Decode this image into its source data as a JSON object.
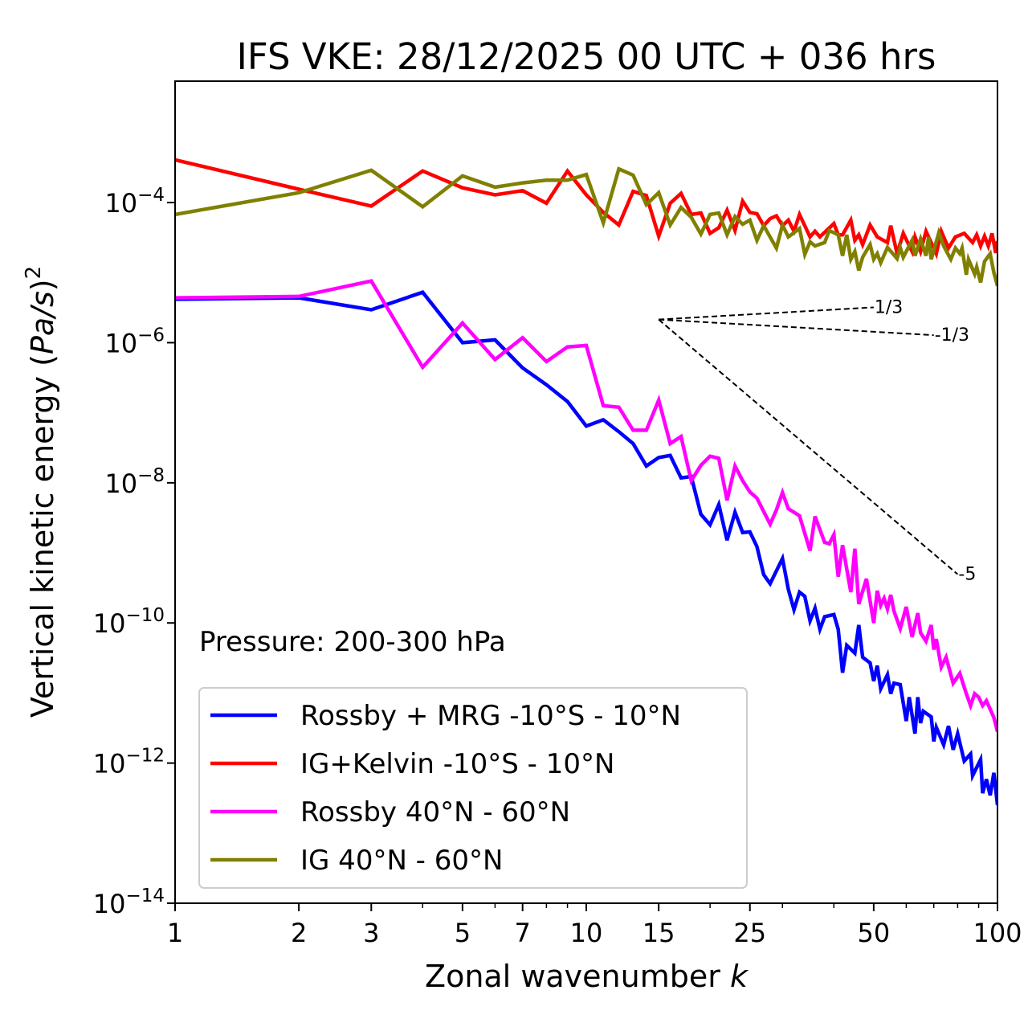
{
  "chart_data": {
    "type": "line",
    "title": "IFS VKE: 28/12/2025 00 UTC + 036 hrs",
    "xlabel_text": "Zonal wavenumber ",
    "xlabel_var": "k",
    "ylabel_text": "Vertical kinetic energy (",
    "ylabel_var": "Pa/s",
    "ylabel_close": ")",
    "ylabel_exp": "2",
    "x_scale": "log",
    "y_scale": "log",
    "xlim": [
      1,
      100
    ],
    "ylim": [
      1e-14,
      0.0054
    ],
    "x_ticks": [
      1,
      2,
      3,
      5,
      7,
      10,
      15,
      25,
      50,
      100
    ],
    "x_tick_labels": [
      "1",
      "2",
      "3",
      "5",
      "7",
      "10",
      "15",
      "25",
      "50",
      "100"
    ],
    "x_minor_ticks": [
      4,
      6,
      8,
      9,
      20,
      30,
      40,
      60,
      70,
      80,
      90
    ],
    "y_ticks_log10": [
      -4,
      -6,
      -8,
      -10,
      -12,
      -14
    ],
    "y_tick_base": "10",
    "y_tick_exponents": [
      "−4",
      "−6",
      "−8",
      "−10",
      "−12",
      "−14"
    ],
    "grid": false,
    "legend_position": "lower-left",
    "annotation": "Pressure: 200-300 hPa",
    "value_encoding": "points are [k, log10(VKE)]",
    "series": [
      {
        "name": "Rossby + MRG -10°S - 10°N",
        "color": "#0000ff",
        "points": [
          [
            1,
            -5.38
          ],
          [
            2,
            -5.36
          ],
          [
            3,
            -5.53
          ],
          [
            4,
            -5.28
          ],
          [
            5,
            -6.0
          ],
          [
            6,
            -5.96
          ],
          [
            7,
            -6.36
          ],
          [
            8,
            -6.6
          ],
          [
            9,
            -6.84
          ],
          [
            10,
            -7.19
          ],
          [
            11,
            -7.1
          ],
          [
            12,
            -7.27
          ],
          [
            13,
            -7.44
          ],
          [
            14,
            -7.76
          ],
          [
            15,
            -7.64
          ],
          [
            16,
            -7.61
          ],
          [
            17,
            -7.93
          ],
          [
            18,
            -7.91
          ],
          [
            19,
            -8.45
          ],
          [
            20,
            -8.6
          ],
          [
            21,
            -8.31
          ],
          [
            22,
            -8.82
          ],
          [
            23,
            -8.42
          ],
          [
            24,
            -8.71
          ],
          [
            25,
            -8.7
          ],
          [
            26,
            -8.91
          ],
          [
            27,
            -9.31
          ],
          [
            28,
            -9.44
          ],
          [
            30,
            -9.08
          ],
          [
            31,
            -9.52
          ],
          [
            32,
            -9.81
          ],
          [
            33,
            -9.56
          ],
          [
            34,
            -9.62
          ],
          [
            35,
            -9.97
          ],
          [
            36,
            -9.79
          ],
          [
            37,
            -10.09
          ],
          [
            38,
            -9.91
          ],
          [
            40,
            -9.88
          ],
          [
            41,
            -10.09
          ],
          [
            42,
            -10.71
          ],
          [
            43,
            -10.32
          ],
          [
            45,
            -10.43
          ],
          [
            46,
            -10.03
          ],
          [
            47,
            -10.49
          ],
          [
            49,
            -10.57
          ],
          [
            50,
            -10.83
          ],
          [
            51,
            -10.61
          ],
          [
            52,
            -10.94
          ],
          [
            54,
            -10.74
          ],
          [
            55,
            -11.01
          ],
          [
            56,
            -10.86
          ],
          [
            58,
            -10.88
          ],
          [
            60,
            -11.4
          ],
          [
            61,
            -11.06
          ],
          [
            63,
            -11.58
          ],
          [
            64,
            -11.06
          ],
          [
            65,
            -11.43
          ],
          [
            66,
            -11.26
          ],
          [
            69,
            -11.34
          ],
          [
            70,
            -11.69
          ],
          [
            71,
            -11.49
          ],
          [
            74,
            -11.74
          ],
          [
            76,
            -11.47
          ],
          [
            78,
            -11.81
          ],
          [
            80,
            -11.58
          ],
          [
            83,
            -11.97
          ],
          [
            86,
            -11.87
          ],
          [
            87,
            -12.18
          ],
          [
            91,
            -11.95
          ],
          [
            92,
            -12.43
          ],
          [
            94,
            -12.23
          ],
          [
            96,
            -12.46
          ],
          [
            98,
            -12.14
          ],
          [
            100,
            -12.6
          ]
        ]
      },
      {
        "name": "IG+Kelvin -10°S - 10°N",
        "color": "#ff0000",
        "points": [
          [
            1,
            -3.39
          ],
          [
            2,
            -3.81
          ],
          [
            3,
            -4.05
          ],
          [
            4,
            -3.55
          ],
          [
            5,
            -3.79
          ],
          [
            6,
            -3.89
          ],
          [
            7,
            -3.83
          ],
          [
            8,
            -4.01
          ],
          [
            9,
            -3.55
          ],
          [
            10,
            -3.89
          ],
          [
            11,
            -4.14
          ],
          [
            12,
            -4.32
          ],
          [
            13,
            -3.84
          ],
          [
            14,
            -3.9
          ],
          [
            15,
            -4.48
          ],
          [
            16,
            -4.01
          ],
          [
            17,
            -3.87
          ],
          [
            18,
            -4.17
          ],
          [
            19,
            -4.15
          ],
          [
            20,
            -4.44
          ],
          [
            21,
            -4.36
          ],
          [
            22,
            -4.11
          ],
          [
            23,
            -4.4
          ],
          [
            24,
            -3.98
          ],
          [
            25,
            -4.14
          ],
          [
            26,
            -4.16
          ],
          [
            27,
            -4.33
          ],
          [
            28,
            -4.23
          ],
          [
            29,
            -4.19
          ],
          [
            30,
            -4.33
          ],
          [
            31,
            -4.25
          ],
          [
            32,
            -4.41
          ],
          [
            33,
            -4.17
          ],
          [
            35,
            -4.49
          ],
          [
            36,
            -4.41
          ],
          [
            37,
            -4.49
          ],
          [
            40,
            -4.3
          ],
          [
            41,
            -4.46
          ],
          [
            42,
            -4.46
          ],
          [
            44,
            -4.25
          ],
          [
            45,
            -4.54
          ],
          [
            46,
            -4.46
          ],
          [
            47,
            -4.6
          ],
          [
            49,
            -4.32
          ],
          [
            51,
            -4.49
          ],
          [
            54,
            -4.57
          ],
          [
            55,
            -4.33
          ],
          [
            57,
            -4.73
          ],
          [
            59,
            -4.44
          ],
          [
            62,
            -4.7
          ],
          [
            63,
            -4.49
          ],
          [
            65,
            -4.7
          ],
          [
            67,
            -4.41
          ],
          [
            71,
            -4.73
          ],
          [
            73,
            -4.41
          ],
          [
            76,
            -4.65
          ],
          [
            79,
            -4.49
          ],
          [
            83,
            -4.44
          ],
          [
            87,
            -4.57
          ],
          [
            89,
            -4.46
          ],
          [
            91,
            -4.62
          ],
          [
            93,
            -4.48
          ],
          [
            95,
            -4.62
          ],
          [
            97,
            -4.44
          ],
          [
            99,
            -4.72
          ],
          [
            100,
            -4.55
          ]
        ]
      },
      {
        "name": "Rossby 40°N - 60°N",
        "color": "#ff00ff",
        "points": [
          [
            1,
            -5.36
          ],
          [
            2,
            -5.34
          ],
          [
            3,
            -5.12
          ],
          [
            4,
            -6.35
          ],
          [
            5,
            -5.72
          ],
          [
            6,
            -6.24
          ],
          [
            7,
            -5.93
          ],
          [
            8,
            -6.27
          ],
          [
            9,
            -6.06
          ],
          [
            10,
            -6.04
          ],
          [
            11,
            -6.9
          ],
          [
            12,
            -6.92
          ],
          [
            13,
            -7.25
          ],
          [
            14,
            -7.25
          ],
          [
            15,
            -6.82
          ],
          [
            16,
            -7.44
          ],
          [
            17,
            -7.34
          ],
          [
            18,
            -7.97
          ],
          [
            19,
            -7.75
          ],
          [
            20,
            -7.62
          ],
          [
            21,
            -7.65
          ],
          [
            22,
            -8.25
          ],
          [
            23,
            -7.76
          ],
          [
            24,
            -7.97
          ],
          [
            25,
            -8.13
          ],
          [
            26,
            -8.22
          ],
          [
            28,
            -8.59
          ],
          [
            29,
            -8.39
          ],
          [
            30,
            -8.14
          ],
          [
            31,
            -8.37
          ],
          [
            33,
            -8.47
          ],
          [
            35,
            -8.97
          ],
          [
            36,
            -8.48
          ],
          [
            38,
            -8.85
          ],
          [
            39,
            -8.87
          ],
          [
            40,
            -8.74
          ],
          [
            41,
            -9.34
          ],
          [
            42,
            -8.89
          ],
          [
            44,
            -9.56
          ],
          [
            45,
            -8.94
          ],
          [
            46,
            -9.73
          ],
          [
            48,
            -9.37
          ],
          [
            50,
            -10.0
          ],
          [
            51,
            -9.54
          ],
          [
            52,
            -9.75
          ],
          [
            53,
            -9.65
          ],
          [
            54,
            -9.8
          ],
          [
            55,
            -9.6
          ],
          [
            56,
            -9.83
          ],
          [
            58,
            -10.08
          ],
          [
            60,
            -9.77
          ],
          [
            62,
            -10.2
          ],
          [
            64,
            -9.86
          ],
          [
            65,
            -10.14
          ],
          [
            67,
            -10.26
          ],
          [
            69,
            -10.03
          ],
          [
            70,
            -10.38
          ],
          [
            71,
            -10.23
          ],
          [
            73,
            -10.63
          ],
          [
            75,
            -10.49
          ],
          [
            78,
            -10.86
          ],
          [
            81,
            -10.72
          ],
          [
            84,
            -11.01
          ],
          [
            86,
            -11.18
          ],
          [
            88,
            -11.01
          ],
          [
            90,
            -11.06
          ],
          [
            92,
            -11.18
          ],
          [
            94,
            -11.11
          ],
          [
            98,
            -11.35
          ],
          [
            100,
            -11.55
          ]
        ]
      },
      {
        "name": "IG 40°N - 60°N",
        "color": "#808000",
        "points": [
          [
            1,
            -4.17
          ],
          [
            2,
            -3.86
          ],
          [
            3,
            -3.54
          ],
          [
            4,
            -4.06
          ],
          [
            5,
            -3.62
          ],
          [
            6,
            -3.78
          ],
          [
            7,
            -3.72
          ],
          [
            8,
            -3.68
          ],
          [
            9,
            -3.68
          ],
          [
            10,
            -3.6
          ],
          [
            11,
            -4.29
          ],
          [
            12,
            -3.52
          ],
          [
            13,
            -3.61
          ],
          [
            14,
            -4.03
          ],
          [
            15,
            -3.86
          ],
          [
            16,
            -4.32
          ],
          [
            17,
            -4.07
          ],
          [
            18,
            -4.21
          ],
          [
            19,
            -4.45
          ],
          [
            20,
            -4.17
          ],
          [
            21,
            -4.15
          ],
          [
            22,
            -4.46
          ],
          [
            23,
            -4.2
          ],
          [
            24,
            -4.31
          ],
          [
            25,
            -4.25
          ],
          [
            26,
            -4.54
          ],
          [
            27,
            -4.33
          ],
          [
            29,
            -4.65
          ],
          [
            30,
            -4.32
          ],
          [
            31,
            -4.49
          ],
          [
            33,
            -4.37
          ],
          [
            34,
            -4.74
          ],
          [
            35,
            -4.56
          ],
          [
            36,
            -4.62
          ],
          [
            38,
            -4.57
          ],
          [
            39,
            -4.4
          ],
          [
            41,
            -4.46
          ],
          [
            42,
            -4.76
          ],
          [
            43,
            -4.46
          ],
          [
            44,
            -4.81
          ],
          [
            45,
            -4.7
          ],
          [
            46,
            -4.97
          ],
          [
            47,
            -4.78
          ],
          [
            49,
            -4.6
          ],
          [
            50,
            -4.81
          ],
          [
            51,
            -4.73
          ],
          [
            52,
            -4.86
          ],
          [
            54,
            -4.64
          ],
          [
            57,
            -4.8
          ],
          [
            58,
            -4.64
          ],
          [
            59,
            -4.78
          ],
          [
            62,
            -4.54
          ],
          [
            63,
            -4.76
          ],
          [
            65,
            -4.52
          ],
          [
            67,
            -4.76
          ],
          [
            68,
            -4.49
          ],
          [
            69,
            -4.81
          ],
          [
            72,
            -4.43
          ],
          [
            74,
            -4.62
          ],
          [
            77,
            -4.81
          ],
          [
            79,
            -4.65
          ],
          [
            81,
            -4.73
          ],
          [
            82,
            -4.65
          ],
          [
            84,
            -5.03
          ],
          [
            85,
            -4.81
          ],
          [
            88,
            -5.02
          ],
          [
            89,
            -4.92
          ],
          [
            91,
            -5.14
          ],
          [
            93,
            -4.84
          ],
          [
            96,
            -4.73
          ],
          [
            98,
            -5.0
          ],
          [
            100,
            -5.19
          ]
        ]
      }
    ],
    "reference_slopes": {
      "origin_k": 15,
      "origin_log10": -5.67,
      "lines": [
        {
          "label": "1/3",
          "slope": 0.3333,
          "end_k": 50
        },
        {
          "label": "-1/3",
          "slope": -0.3333,
          "end_k": 70
        },
        {
          "label": "-5",
          "slope": -5,
          "end_k": 80
        }
      ]
    }
  }
}
